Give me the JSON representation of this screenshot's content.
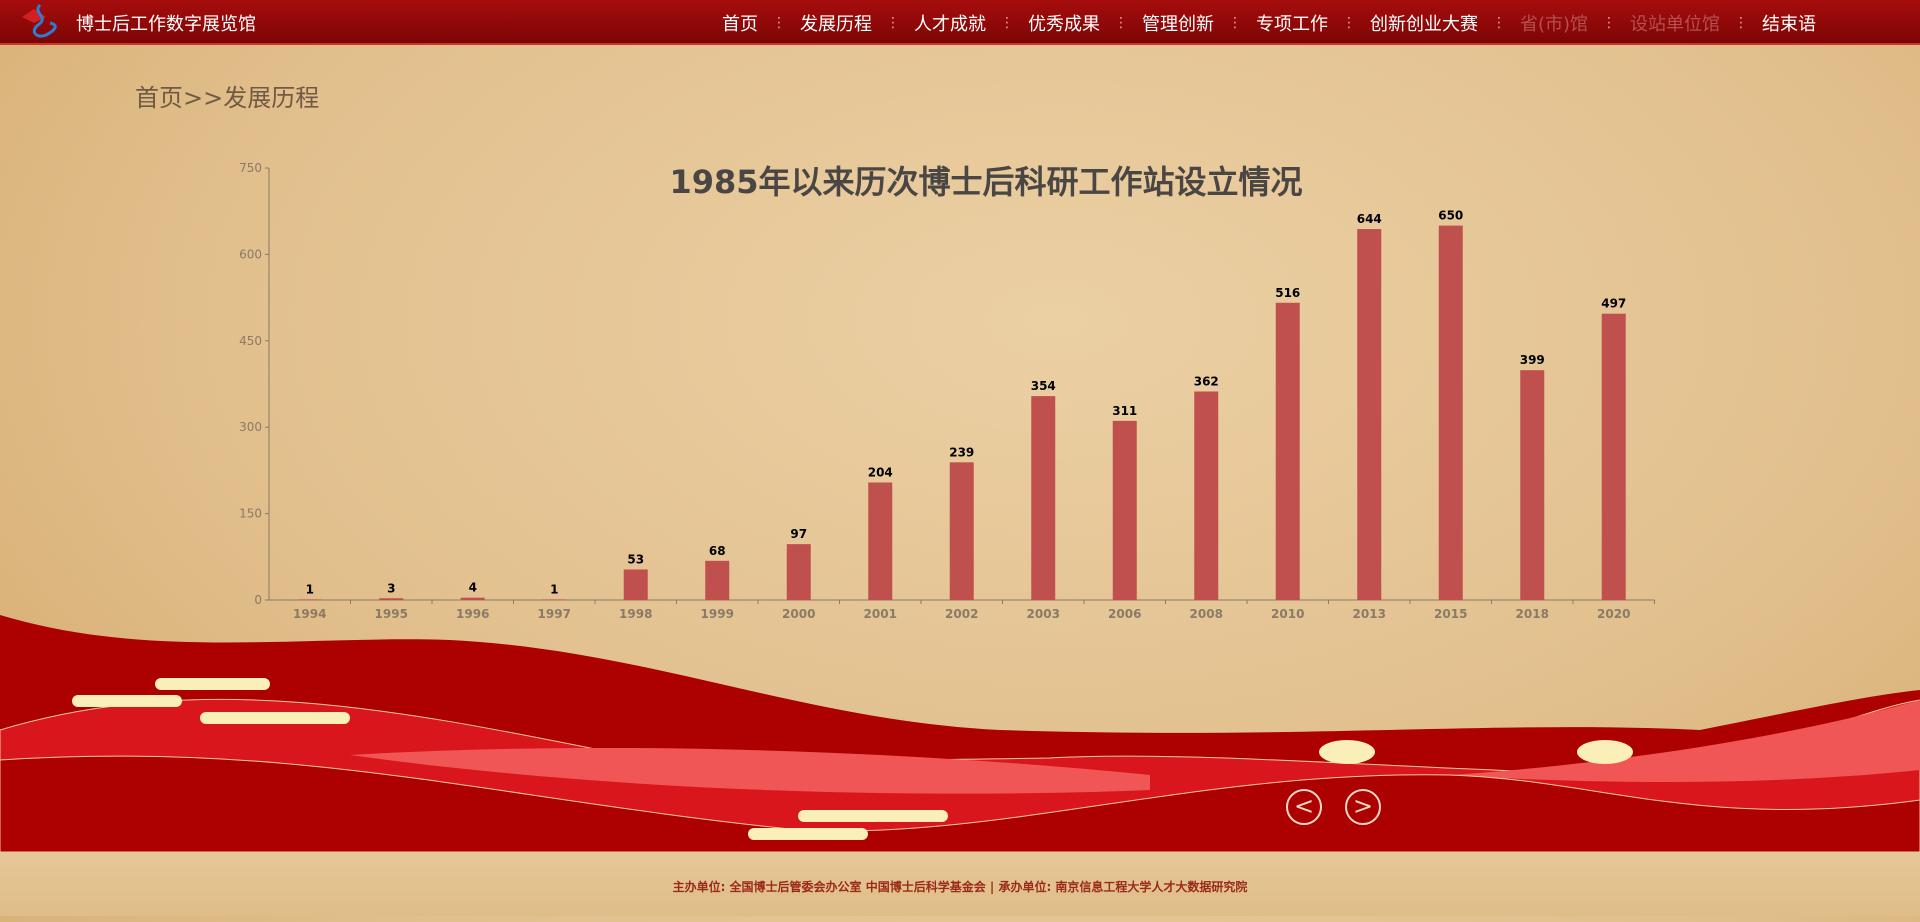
{
  "header": {
    "title": "博士后工作数字展览馆",
    "nav": [
      {
        "label": "首页",
        "dim": false
      },
      {
        "label": "发展历程",
        "dim": false
      },
      {
        "label": "人才成就",
        "dim": false
      },
      {
        "label": "优秀成果",
        "dim": false
      },
      {
        "label": "管理创新",
        "dim": false
      },
      {
        "label": "专项工作",
        "dim": false
      },
      {
        "label": "创新创业大赛",
        "dim": false
      },
      {
        "label": "省(市)馆",
        "dim": true
      },
      {
        "label": "设站单位馆",
        "dim": true
      },
      {
        "label": "结束语",
        "dim": false
      }
    ]
  },
  "breadcrumb": "首页>>发展历程",
  "chart_data": {
    "type": "bar",
    "title": "1985年以来历次博士后科研工作站设立情况",
    "categories": [
      "1994",
      "1995",
      "1996",
      "1997",
      "1998",
      "1999",
      "2000",
      "2001",
      "2002",
      "2003",
      "2006",
      "2008",
      "2010",
      "2013",
      "2015",
      "2018",
      "2020"
    ],
    "values": [
      1,
      3,
      4,
      1,
      53,
      68,
      97,
      204,
      239,
      354,
      311,
      362,
      516,
      644,
      650,
      399,
      497
    ],
    "ylim": [
      0,
      750
    ],
    "yticks": [
      0,
      150,
      300,
      450,
      600,
      750
    ],
    "grid": false,
    "bar_color": "#c0504d",
    "data_labels": true
  },
  "pager": {
    "prev": "<",
    "next": ">"
  },
  "footer": "主办单位: 全国博士后管委会办公室   中国博士后科学基金会 | 承办单位: 南京信息工程大学人才大数据研究院",
  "colors": {
    "header": "#8f0808",
    "wave": "#ae0000"
  }
}
